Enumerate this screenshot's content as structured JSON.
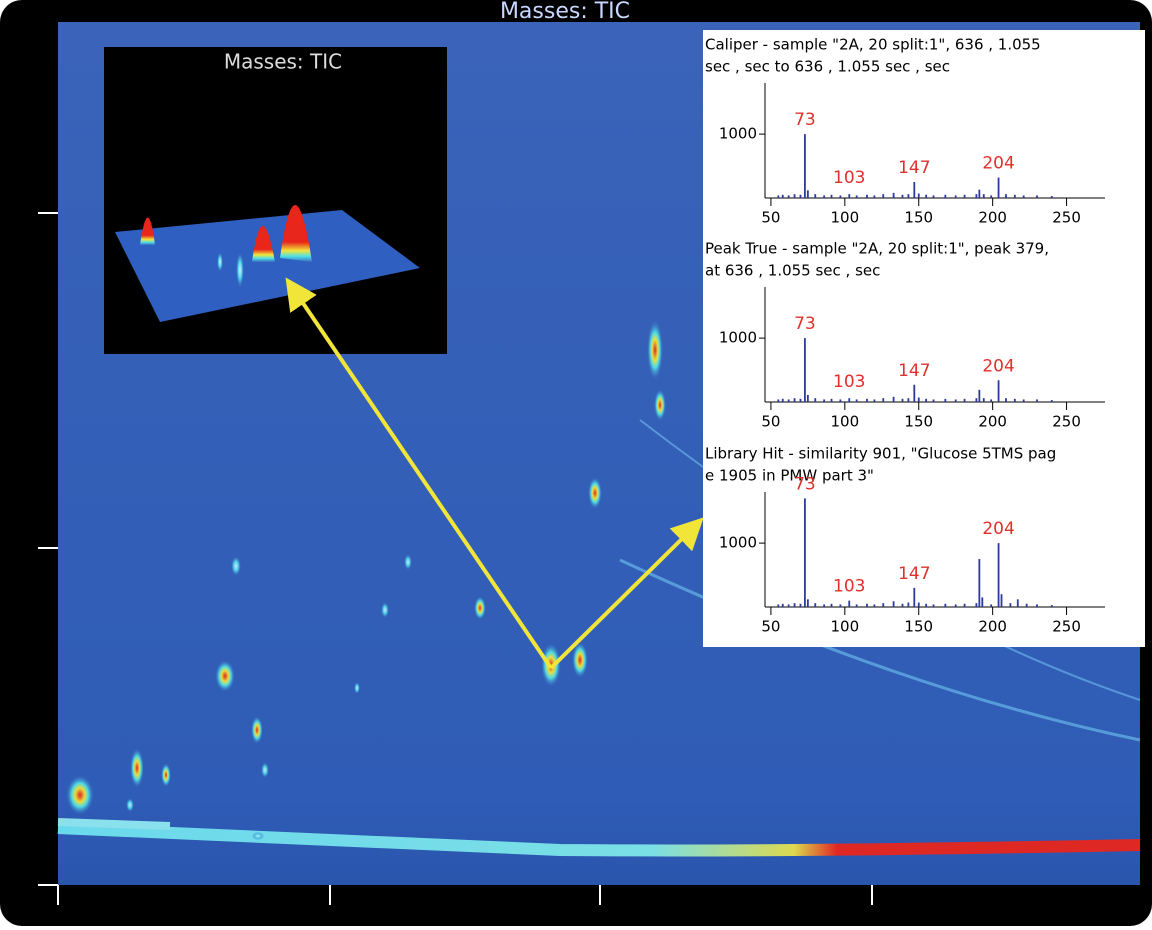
{
  "title": "Masses: TIC",
  "inset_title": "Masses: TIC",
  "chart_data": [
    {
      "type": "bar",
      "title": "Caliper - sample \"2A, 20 split:1\", 636 , 1.055",
      "subtitle": "sec , sec to 636 , 1.055 sec , sec",
      "x": [
        55,
        58,
        62,
        66,
        70,
        73,
        75,
        80,
        86,
        91,
        97,
        103,
        108,
        115,
        120,
        126,
        133,
        139,
        143,
        147,
        150,
        155,
        160,
        168,
        175,
        181,
        189,
        191,
        194,
        199,
        204,
        209,
        215,
        221,
        230,
        240
      ],
      "values": [
        40,
        50,
        40,
        60,
        50,
        1000,
        120,
        60,
        40,
        50,
        40,
        60,
        40,
        50,
        40,
        60,
        80,
        50,
        60,
        250,
        70,
        50,
        40,
        50,
        40,
        50,
        60,
        130,
        60,
        40,
        320,
        60,
        50,
        40,
        40,
        30
      ],
      "annotations": [
        73,
        103,
        147,
        204
      ],
      "xlim": [
        46,
        276
      ],
      "ylim": [
        0,
        1800
      ],
      "xticks": [
        50,
        100,
        150,
        200,
        250
      ],
      "yticks": [
        1000
      ],
      "color": "#2b3a9c"
    },
    {
      "type": "bar",
      "title": "Peak True - sample \"2A, 20 split:1\", peak 379,",
      "subtitle": " at 636 , 1.055 sec , sec",
      "x": [
        55,
        58,
        62,
        66,
        70,
        73,
        75,
        80,
        86,
        91,
        97,
        103,
        108,
        115,
        120,
        126,
        133,
        139,
        143,
        147,
        150,
        155,
        160,
        168,
        175,
        181,
        189,
        191,
        194,
        199,
        204,
        209,
        215,
        221,
        230,
        240
      ],
      "values": [
        40,
        50,
        40,
        60,
        50,
        1000,
        110,
        60,
        40,
        50,
        40,
        60,
        40,
        50,
        40,
        60,
        80,
        50,
        60,
        270,
        70,
        50,
        40,
        50,
        40,
        50,
        60,
        190,
        60,
        40,
        340,
        60,
        50,
        40,
        40,
        30
      ],
      "annotations": [
        73,
        103,
        147,
        204
      ],
      "xlim": [
        46,
        276
      ],
      "ylim": [
        0,
        1800
      ],
      "xticks": [
        50,
        100,
        150,
        200,
        250
      ],
      "yticks": [
        1000
      ],
      "color": "#2b3a9c"
    },
    {
      "type": "bar",
      "title": "Library Hit - similarity 901, \"Glucose 5TMS pag",
      "subtitle": "e 1905 in PMW part 3\"",
      "x": [
        55,
        58,
        62,
        66,
        70,
        73,
        75,
        80,
        86,
        91,
        97,
        103,
        108,
        115,
        120,
        126,
        133,
        139,
        143,
        147,
        150,
        155,
        160,
        168,
        175,
        181,
        189,
        191,
        193,
        199,
        204,
        206,
        212,
        217,
        223,
        230,
        240
      ],
      "values": [
        40,
        50,
        40,
        60,
        50,
        1700,
        120,
        60,
        40,
        50,
        40,
        100,
        40,
        50,
        40,
        60,
        90,
        50,
        70,
        300,
        70,
        50,
        40,
        50,
        40,
        50,
        60,
        750,
        150,
        40,
        1000,
        200,
        60,
        120,
        50,
        40,
        30
      ],
      "annotations": [
        73,
        103,
        147,
        204
      ],
      "xlim": [
        46,
        276
      ],
      "ylim": [
        0,
        1800
      ],
      "xticks": [
        50,
        100,
        150,
        200,
        250
      ],
      "yticks": [
        1000
      ],
      "color": "#2b3a9c"
    }
  ]
}
